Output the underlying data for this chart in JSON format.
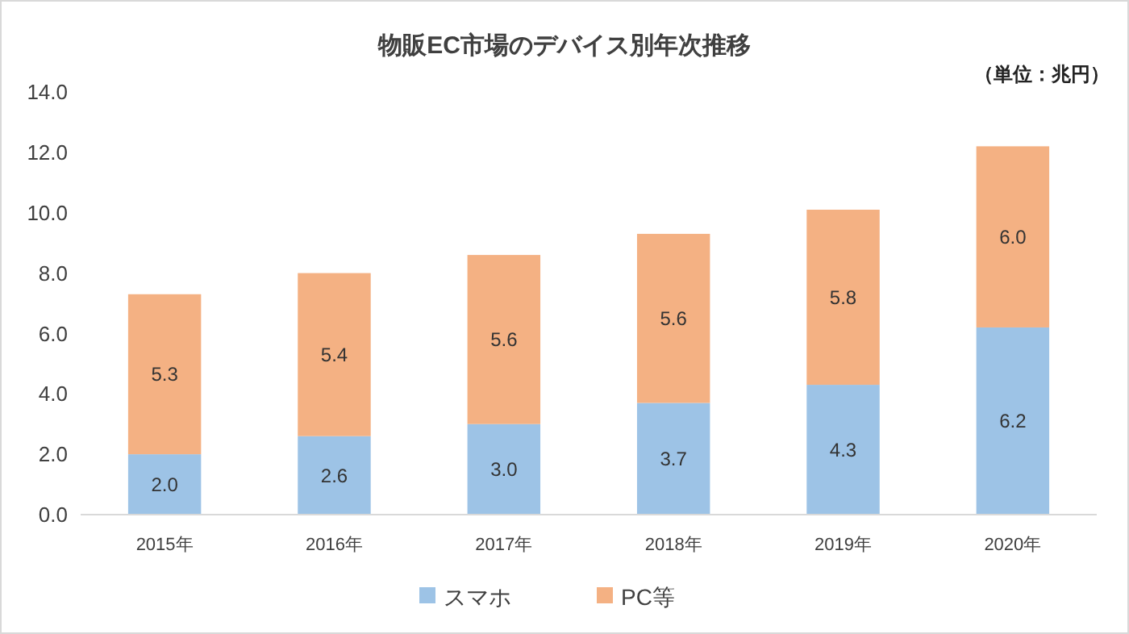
{
  "chart_data": {
    "type": "bar",
    "title": "物販EC市場のデバイス別年次推移",
    "annotations": [
      "（単位：兆円）"
    ],
    "categories": [
      "2015年",
      "2016年",
      "2017年",
      "2018年",
      "2019年",
      "2020年"
    ],
    "series": [
      {
        "name": "スマホ",
        "color": "#9dc3e6",
        "values": [
          2.0,
          2.6,
          3.0,
          3.7,
          4.3,
          6.2
        ],
        "value_labels": [
          "2.0",
          "2.6",
          "3.0",
          "3.7",
          "4.3",
          "6.2"
        ]
      },
      {
        "name": "PC等",
        "color": "#f4b183",
        "values": [
          5.3,
          5.4,
          5.6,
          5.6,
          5.8,
          6.0
        ],
        "value_labels": [
          "5.3",
          "5.4",
          "5.6",
          "5.6",
          "5.8",
          "6.0"
        ]
      }
    ],
    "stacked": true,
    "ylim": [
      0,
      14
    ],
    "yticks": [
      {
        "value": 0,
        "label": "0.0"
      },
      {
        "value": 2,
        "label": "2.0"
      },
      {
        "value": 4,
        "label": "4.0"
      },
      {
        "value": 6,
        "label": "6.0"
      },
      {
        "value": 8,
        "label": "8.0"
      },
      {
        "value": 10,
        "label": "10.0"
      },
      {
        "value": 12,
        "label": "12.0"
      },
      {
        "value": 14,
        "label": "14.0"
      }
    ],
    "grid": false,
    "legend": "bottom"
  }
}
